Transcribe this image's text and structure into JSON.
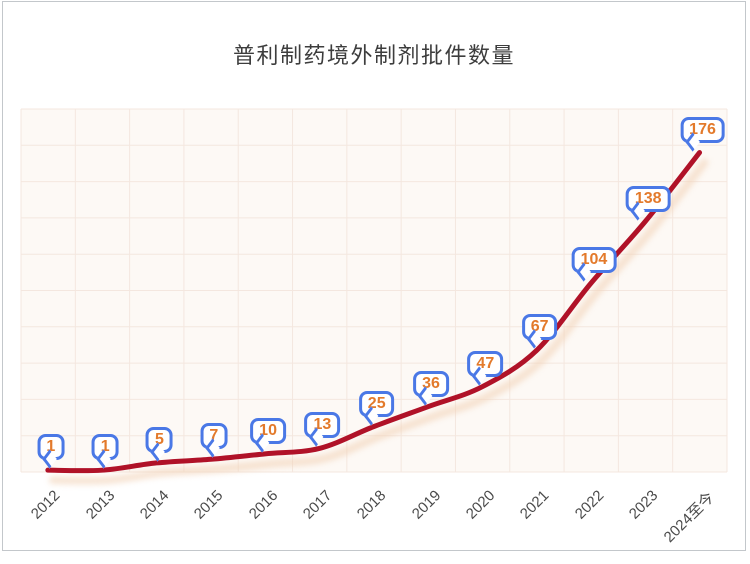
{
  "chart_data": {
    "type": "line",
    "title": "普利制药境外制剂批件数量",
    "categories": [
      "2012",
      "2013",
      "2014",
      "2015",
      "2016",
      "2017",
      "2018",
      "2019",
      "2020",
      "2021",
      "2022",
      "2023",
      "2024至今"
    ],
    "series": [
      {
        "name": "境外制剂批件数量",
        "values": [
          1,
          1,
          5,
          7,
          10,
          13,
          25,
          36,
          47,
          67,
          104,
          138,
          176
        ]
      }
    ],
    "xlabel": "",
    "ylabel": "",
    "ylim": [
      0,
      200
    ],
    "y_gridline_step": 20,
    "grid": "on",
    "legend": "none",
    "x_tick_rotation": -45,
    "data_label_style": "callout-bubble",
    "colors": {
      "line": "#b01228",
      "line_shadow": "#f2d3b8",
      "callout_border": "#4a78e6",
      "callout_fill": "#ffffff",
      "callout_text": "#e37a2b",
      "plot_background": "#fdf9f5",
      "gridline": "#f4e7df",
      "axis_label": "#4a4a4a",
      "title": "#3d3d3d",
      "card_border": "#c3c7cb"
    }
  }
}
